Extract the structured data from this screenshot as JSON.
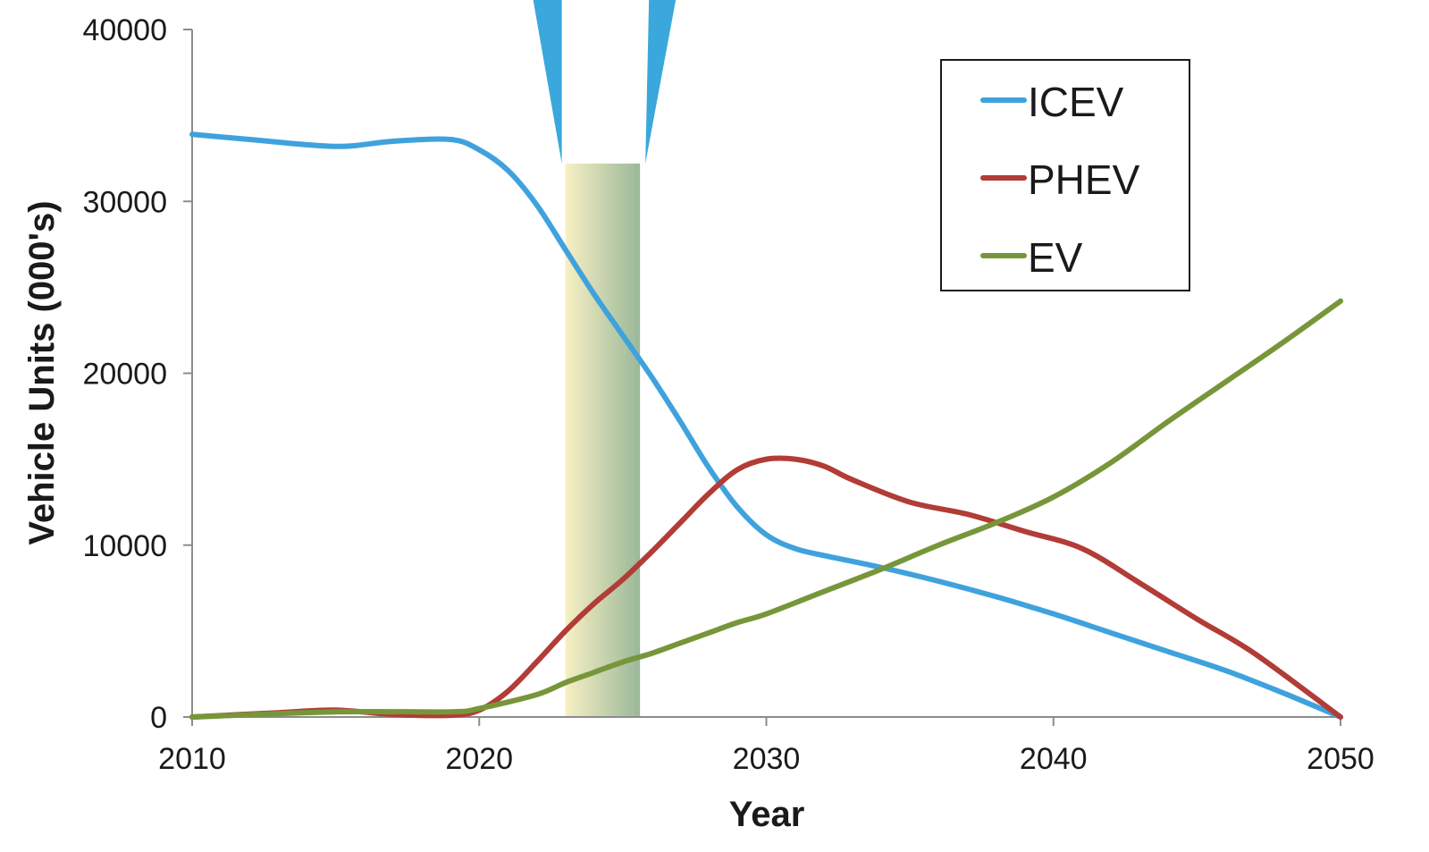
{
  "chart_data": {
    "type": "line",
    "title": "",
    "xlabel": "Year",
    "ylabel": "Vehicle Units (000's)",
    "xlim": [
      2010,
      2050
    ],
    "ylim": [
      0,
      40000
    ],
    "x_ticks": [
      "2010",
      "2020",
      "2030",
      "2040",
      "2050"
    ],
    "y_ticks": [
      "0",
      "10000",
      "20000",
      "30000",
      "40000"
    ],
    "grid": false,
    "legend_position": "top-right",
    "series": [
      {
        "name": "ICEV",
        "color": "#3fa2dd",
        "x": [
          2010,
          2012,
          2015,
          2017,
          2019,
          2020,
          2021,
          2022,
          2023,
          2024,
          2025,
          2026,
          2027,
          2028,
          2029,
          2030,
          2031,
          2032,
          2034,
          2036,
          2038,
          2040,
          2042,
          2044,
          2046,
          2048,
          2050
        ],
        "y": [
          33900,
          33600,
          33200,
          33500,
          33600,
          33000,
          31800,
          29800,
          27200,
          24600,
          22200,
          19800,
          17200,
          14500,
          12200,
          10600,
          9800,
          9400,
          8700,
          7900,
          7000,
          6000,
          4900,
          3800,
          2700,
          1400,
          0
        ]
      },
      {
        "name": "PHEV",
        "color": "#b23c36",
        "x": [
          2010,
          2013,
          2015,
          2017,
          2019,
          2020,
          2021,
          2022,
          2023,
          2024,
          2025,
          2026,
          2027,
          2028,
          2029,
          2030,
          2031,
          2032,
          2033,
          2035,
          2037,
          2039,
          2041,
          2043,
          2045,
          2047,
          2050
        ],
        "y": [
          0,
          250,
          400,
          150,
          100,
          400,
          1500,
          3200,
          5000,
          6600,
          8000,
          9600,
          11300,
          13000,
          14400,
          15000,
          15000,
          14600,
          13800,
          12500,
          11800,
          10800,
          9800,
          7800,
          5700,
          3700,
          0
        ]
      },
      {
        "name": "EV",
        "color": "#77963a",
        "x": [
          2010,
          2015,
          2019,
          2020,
          2022,
          2023,
          2024,
          2025,
          2026,
          2027,
          2028,
          2029,
          2030,
          2032,
          2034,
          2036,
          2038,
          2040,
          2042,
          2044,
          2046,
          2048,
          2050
        ],
        "y": [
          0,
          300,
          300,
          500,
          1300,
          2000,
          2600,
          3200,
          3700,
          4300,
          4900,
          5500,
          6000,
          7300,
          8600,
          10000,
          11300,
          12800,
          14800,
          17200,
          19500,
          21800,
          24200
        ]
      }
    ],
    "highlight_band": {
      "x_start": 2023,
      "x_end": 2025.6,
      "y_top": 32200,
      "colors": [
        "#f6eebd",
        "#8fb08e"
      ]
    },
    "callout_color": "#3aa8dc"
  }
}
